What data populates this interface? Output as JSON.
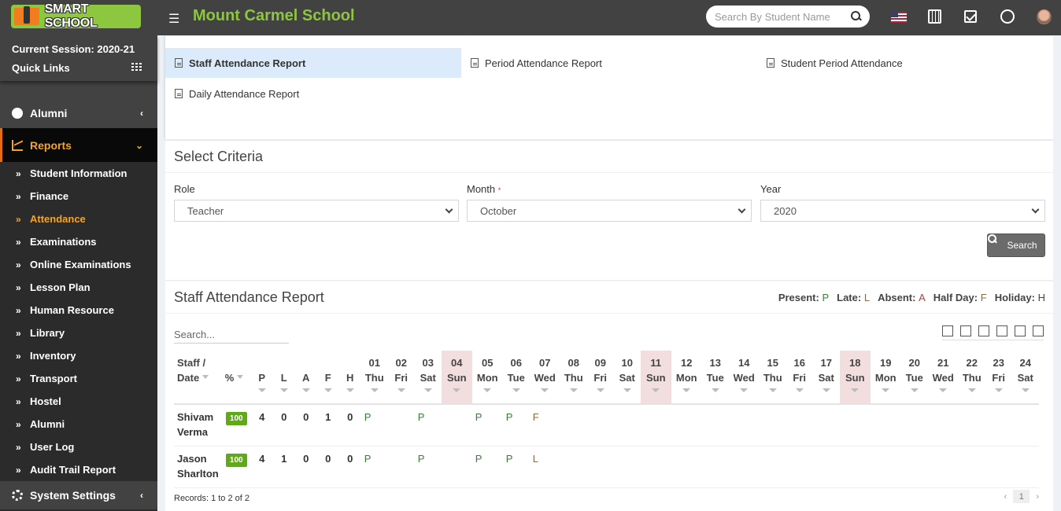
{
  "header": {
    "logo_text": "SMART SCHOOL",
    "school_name": "Mount Carmel School",
    "search_placeholder": "Search By Student Name"
  },
  "sidebar": {
    "session": "Current Session: 2020-21",
    "quick_links": "Quick Links",
    "alumni_top": "Alumni",
    "reports": "Reports",
    "sub_items": [
      "Student Information",
      "Finance",
      "Attendance",
      "Examinations",
      "Online Examinations",
      "Lesson Plan",
      "Human Resource",
      "Library",
      "Inventory",
      "Transport",
      "Hostel",
      "Alumni",
      "User Log",
      "Audit Trail Report"
    ],
    "active_sub": "Attendance",
    "system_settings": "System Settings"
  },
  "report_links": [
    {
      "label": "Staff Attendance Report",
      "selected": true
    },
    {
      "label": "Period Attendance Report",
      "selected": false
    },
    {
      "label": "Student Period Attendance",
      "selected": false
    },
    {
      "label": "Daily Attendance Report",
      "selected": false
    }
  ],
  "criteria": {
    "title": "Select Criteria",
    "role_label": "Role",
    "role_value": "Teacher",
    "month_label": "Month",
    "month_value": "October",
    "year_label": "Year",
    "year_value": "2020",
    "search_button": "Search"
  },
  "report": {
    "title": "Staff Attendance Report",
    "legend": [
      {
        "label": "Present:",
        "code": "P",
        "color": "#3a7d3a"
      },
      {
        "label": "Late:",
        "code": "L",
        "color": "#8a6d3b"
      },
      {
        "label": "Absent:",
        "code": "A",
        "color": "#a94442"
      },
      {
        "label": "Half Day:",
        "code": "F",
        "color": "#8a6d3b"
      },
      {
        "label": "Holiday:",
        "code": "H",
        "color": "#444444"
      }
    ],
    "search_placeholder": "Search...",
    "columns_fixed": [
      {
        "top": "Staff /",
        "bottom": "Date"
      },
      {
        "top": "",
        "bottom": "%"
      },
      {
        "top": "",
        "bottom": "P"
      },
      {
        "top": "",
        "bottom": "L"
      },
      {
        "top": "",
        "bottom": "A"
      },
      {
        "top": "",
        "bottom": "F"
      },
      {
        "top": "",
        "bottom": "H"
      }
    ],
    "days": [
      {
        "d": "01",
        "w": "Thu"
      },
      {
        "d": "02",
        "w": "Fri"
      },
      {
        "d": "03",
        "w": "Sat"
      },
      {
        "d": "04",
        "w": "Sun"
      },
      {
        "d": "05",
        "w": "Mon"
      },
      {
        "d": "06",
        "w": "Tue"
      },
      {
        "d": "07",
        "w": "Wed"
      },
      {
        "d": "08",
        "w": "Thu"
      },
      {
        "d": "09",
        "w": "Fri"
      },
      {
        "d": "10",
        "w": "Sat"
      },
      {
        "d": "11",
        "w": "Sun"
      },
      {
        "d": "12",
        "w": "Mon"
      },
      {
        "d": "13",
        "w": "Tue"
      },
      {
        "d": "14",
        "w": "Wed"
      },
      {
        "d": "15",
        "w": "Thu"
      },
      {
        "d": "16",
        "w": "Fri"
      },
      {
        "d": "17",
        "w": "Sat"
      },
      {
        "d": "18",
        "w": "Sun"
      },
      {
        "d": "19",
        "w": "Mon"
      },
      {
        "d": "20",
        "w": "Tue"
      },
      {
        "d": "21",
        "w": "Wed"
      },
      {
        "d": "22",
        "w": "Thu"
      },
      {
        "d": "23",
        "w": "Fri"
      },
      {
        "d": "24",
        "w": "Sat"
      }
    ],
    "rows": [
      {
        "name_first": "Shivam",
        "name_last": "Verma",
        "pct": "100",
        "P": "4",
        "L": "0",
        "A": "0",
        "F": "1",
        "H": "0",
        "marks": [
          "P",
          "",
          "P",
          "",
          "P",
          "P",
          "F",
          "",
          "",
          "",
          "",
          "",
          "",
          "",
          "",
          "",
          "",
          "",
          "",
          "",
          "",
          "",
          "",
          ""
        ]
      },
      {
        "name_first": "Jason",
        "name_last": "Sharlton",
        "pct": "100",
        "P": "4",
        "L": "1",
        "A": "0",
        "F": "0",
        "H": "0",
        "marks": [
          "P",
          "",
          "P",
          "",
          "P",
          "P",
          "L",
          "",
          "",
          "",
          "",
          "",
          "",
          "",
          "",
          "",
          "",
          "",
          "",
          "",
          "",
          "",
          "",
          ""
        ]
      }
    ],
    "records": "Records: 1 to 2 of 2",
    "page": "1"
  }
}
